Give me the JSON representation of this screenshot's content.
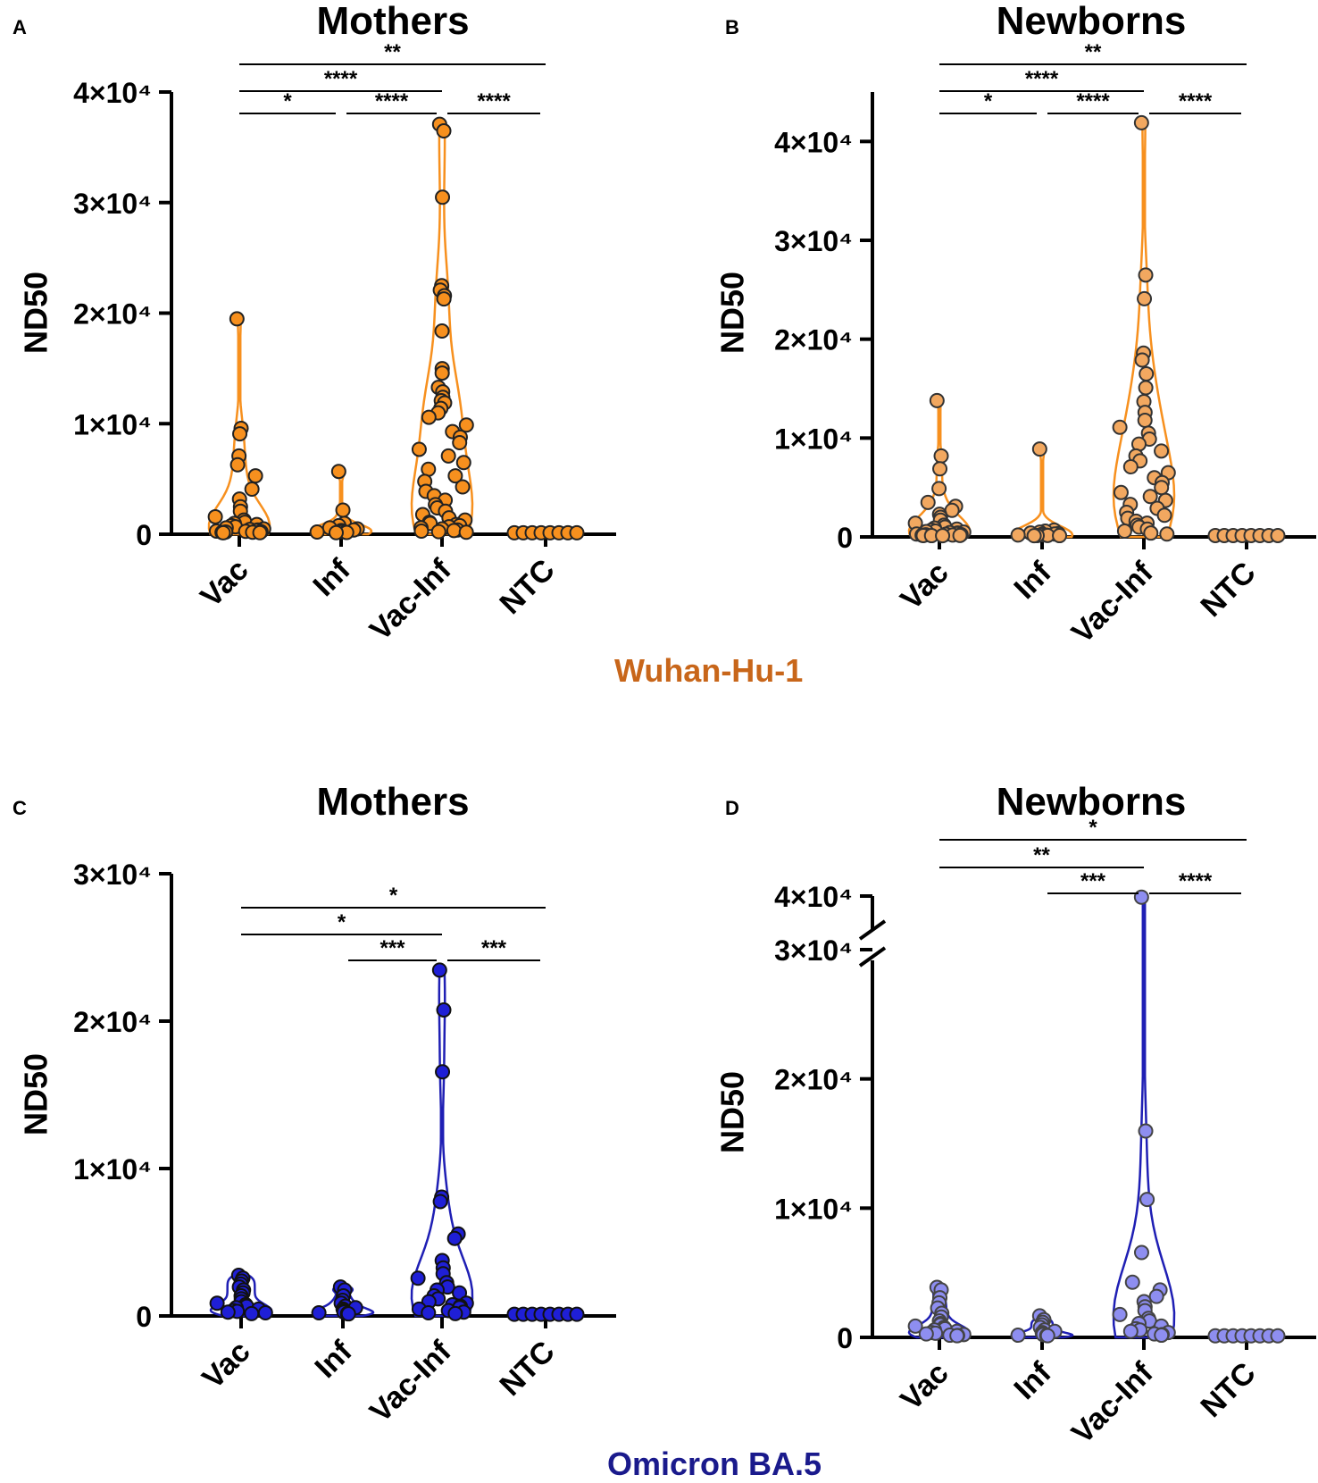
{
  "variant_labels": {
    "top": {
      "text": "Wuhan-Hu-1",
      "color": "#c8661a"
    },
    "bottom": {
      "text": "Omicron BA.5",
      "color": "#1a1a8c"
    }
  },
  "chart_data": [
    {
      "panel": "A",
      "type": "scatter",
      "subtype": "violin-dot",
      "title": "Mothers",
      "ylabel": "ND50",
      "ylim": [
        0,
        40000
      ],
      "yticks": [
        {
          "value": 0,
          "label": "0"
        },
        {
          "value": 10000,
          "label": "1×10⁴"
        },
        {
          "value": 20000,
          "label": "2×10⁴"
        },
        {
          "value": 30000,
          "label": "3×10⁴"
        },
        {
          "value": 40000,
          "label": "4×10⁴"
        }
      ],
      "categories": [
        "Vac",
        "Inf",
        "Vac-Inf",
        "NTC"
      ],
      "fill_color": "#f7901e",
      "edge_color": "#222222",
      "violin_color": "#f7901e",
      "series": [
        {
          "name": "Vac",
          "values": [
            19400,
            9500,
            9000,
            7000,
            6200,
            5200,
            4000,
            3100,
            2400,
            2000,
            1500,
            1200,
            1000,
            900,
            800,
            700,
            600,
            500,
            400,
            350,
            300,
            250,
            200,
            180,
            150,
            120,
            100,
            80,
            60,
            50
          ]
        },
        {
          "name": "Inf",
          "values": [
            5600,
            2100,
            900,
            700,
            500,
            400,
            300,
            250,
            200,
            150,
            120,
            100,
            80,
            60
          ]
        },
        {
          "name": "Vac-Inf",
          "values": [
            37000,
            36400,
            30400,
            22400,
            22000,
            21500,
            21200,
            18300,
            14900,
            14500,
            13200,
            12800,
            12300,
            12000,
            11800,
            11300,
            10900,
            10500,
            9800,
            9200,
            8700,
            8200,
            7600,
            7000,
            6400,
            5800,
            5200,
            4700,
            4200,
            3800,
            3400,
            3000,
            2600,
            2300,
            2000,
            1700,
            1400,
            1200,
            1000,
            900,
            800,
            700,
            600,
            500,
            400,
            300,
            250,
            200,
            150,
            100
          ]
        },
        {
          "name": "NTC",
          "values": [
            50,
            50,
            50,
            50,
            50,
            50,
            50,
            50
          ]
        }
      ],
      "significance": [
        {
          "from": "Vac",
          "to": "NTC",
          "label": "**",
          "level": 3
        },
        {
          "from": "Vac",
          "to": "Vac-Inf",
          "label": "****",
          "level": 2
        },
        {
          "from": "Vac",
          "to": "Inf",
          "label": "*",
          "level": 1
        },
        {
          "from": "Inf",
          "to": "Vac-Inf",
          "label": "****",
          "level": 1
        },
        {
          "from": "Vac-Inf",
          "to": "NTC",
          "label": "****",
          "level": 1
        }
      ]
    },
    {
      "panel": "B",
      "type": "scatter",
      "subtype": "violin-dot",
      "title": "Newborns",
      "ylabel": "ND50",
      "ylim": [
        0,
        45000
      ],
      "yticks": [
        {
          "value": 0,
          "label": "0"
        },
        {
          "value": 10000,
          "label": "1×10⁴"
        },
        {
          "value": 20000,
          "label": "2×10⁴"
        },
        {
          "value": 30000,
          "label": "3×10⁴"
        },
        {
          "value": 40000,
          "label": "4×10⁴"
        }
      ],
      "categories": [
        "Vac",
        "Inf",
        "Vac-Inf",
        "NTC"
      ],
      "fill_color": "#f2a860",
      "edge_color": "#333333",
      "violin_color": "#f7901e",
      "series": [
        {
          "name": "Vac",
          "values": [
            13700,
            8100,
            6800,
            4800,
            3400,
            3000,
            2600,
            2200,
            1900,
            1600,
            1300,
            1100,
            900,
            800,
            700,
            600,
            500,
            450,
            400,
            350,
            300,
            250,
            200,
            180,
            150,
            120,
            100,
            80,
            60,
            50,
            40,
            30
          ]
        },
        {
          "name": "Inf",
          "values": [
            8800,
            600,
            500,
            400,
            300,
            250,
            200,
            180,
            150,
            120,
            100,
            80,
            60,
            50,
            40,
            30
          ]
        },
        {
          "name": "Vac-Inf",
          "values": [
            41800,
            26400,
            24000,
            18500,
            17800,
            16400,
            15000,
            13600,
            12500,
            11700,
            11000,
            10400,
            9800,
            9300,
            8600,
            8100,
            7600,
            7000,
            6400,
            5900,
            5400,
            4900,
            4400,
            4000,
            3600,
            3200,
            2800,
            2400,
            2100,
            1800,
            1500,
            1300,
            1100,
            900,
            700,
            500,
            300,
            200
          ]
        },
        {
          "name": "NTC",
          "values": [
            50,
            50,
            50,
            50,
            50,
            50,
            50,
            50
          ]
        }
      ],
      "significance": [
        {
          "from": "Vac",
          "to": "NTC",
          "label": "**",
          "level": 3
        },
        {
          "from": "Vac",
          "to": "Vac-Inf",
          "label": "****",
          "level": 2
        },
        {
          "from": "Vac",
          "to": "Inf",
          "label": "*",
          "level": 1
        },
        {
          "from": "Inf",
          "to": "Vac-Inf",
          "label": "****",
          "level": 1
        },
        {
          "from": "Vac-Inf",
          "to": "NTC",
          "label": "****",
          "level": 1
        }
      ]
    },
    {
      "panel": "C",
      "type": "scatter",
      "subtype": "violin-dot",
      "title": "Mothers",
      "ylabel": "ND50",
      "ylim": [
        0,
        30000
      ],
      "yticks": [
        {
          "value": 0,
          "label": "0"
        },
        {
          "value": 10000,
          "label": "1×10⁴"
        },
        {
          "value": 20000,
          "label": "2×10⁴"
        },
        {
          "value": 30000,
          "label": "3×10⁴"
        }
      ],
      "categories": [
        "Vac",
        "Inf",
        "Vac-Inf",
        "NTC"
      ],
      "fill_color": "#1f1fd6",
      "edge_color": "#111111",
      "violin_color": "#1f1fb4",
      "series": [
        {
          "name": "Vac",
          "values": [
            2700,
            2500,
            2300,
            2100,
            1900,
            1700,
            1500,
            1300,
            1100,
            900,
            800,
            700,
            600,
            500,
            400,
            300,
            250,
            200,
            150,
            100
          ]
        },
        {
          "name": "Inf",
          "values": [
            1900,
            1700,
            1300,
            1000,
            800,
            600,
            500,
            400,
            300,
            200,
            150,
            100,
            80
          ]
        },
        {
          "name": "Vac-Inf",
          "values": [
            23400,
            20700,
            16500,
            8000,
            7700,
            5500,
            5200,
            3700,
            3200,
            2800,
            2500,
            2200,
            1900,
            1700,
            1500,
            1300,
            1100,
            900,
            800,
            700,
            600,
            500,
            400,
            300,
            200,
            150,
            100
          ]
        },
        {
          "name": "NTC",
          "values": [
            50,
            50,
            50,
            50,
            50,
            50,
            50,
            50
          ]
        }
      ],
      "significance": [
        {
          "from": "Vac",
          "to": "NTC",
          "label": "*",
          "level": 3
        },
        {
          "from": "Vac",
          "to": "Vac-Inf",
          "label": "*",
          "level": 2
        },
        {
          "from": "Inf",
          "to": "Vac-Inf",
          "label": "***",
          "level": 1
        },
        {
          "from": "Vac-Inf",
          "to": "NTC",
          "label": "***",
          "level": 1
        }
      ]
    },
    {
      "panel": "D",
      "type": "scatter",
      "subtype": "violin-dot",
      "title": "Newborns",
      "ylabel": "ND50",
      "ylim": [
        0,
        40000
      ],
      "axis_break": [
        30000,
        40000
      ],
      "yticks": [
        {
          "value": 0,
          "label": "0"
        },
        {
          "value": 10000,
          "label": "1×10⁴"
        },
        {
          "value": 20000,
          "label": "2×10⁴"
        },
        {
          "value": 30000,
          "label": "3×10⁴"
        },
        {
          "value": 40000,
          "label": "4×10⁴"
        }
      ],
      "categories": [
        "Vac",
        "Inf",
        "Vac-Inf",
        "NTC"
      ],
      "fill_color": "#8e8ef0",
      "edge_color": "#444444",
      "violin_color": "#1f1fb4",
      "series": [
        {
          "name": "Vac",
          "values": [
            3800,
            3600,
            3000,
            2600,
            2200,
            1800,
            1500,
            1200,
            1000,
            900,
            800,
            700,
            600,
            500,
            400,
            300,
            250,
            200,
            150,
            100,
            80,
            60
          ]
        },
        {
          "name": "Inf",
          "values": [
            1600,
            1300,
            1100,
            900,
            700,
            500,
            400,
            300,
            200,
            150,
            100,
            80,
            60
          ]
        },
        {
          "name": "Vac-Inf",
          "values": [
            38500,
            15900,
            10600,
            6500,
            4200,
            3600,
            3100,
            2700,
            2300,
            2000,
            1700,
            1400,
            1200,
            1000,
            800,
            600,
            500,
            400,
            300,
            200,
            150,
            100
          ]
        },
        {
          "name": "NTC",
          "values": [
            50,
            50,
            50,
            50,
            50,
            50,
            50,
            50
          ]
        }
      ],
      "significance": [
        {
          "from": "Vac",
          "to": "NTC",
          "label": "*",
          "level": 3
        },
        {
          "from": "Vac",
          "to": "Vac-Inf",
          "label": "**",
          "level": 2
        },
        {
          "from": "Inf",
          "to": "Vac-Inf",
          "label": "***",
          "level": 1
        },
        {
          "from": "Vac-Inf",
          "to": "NTC",
          "label": "****",
          "level": 1
        }
      ]
    }
  ]
}
